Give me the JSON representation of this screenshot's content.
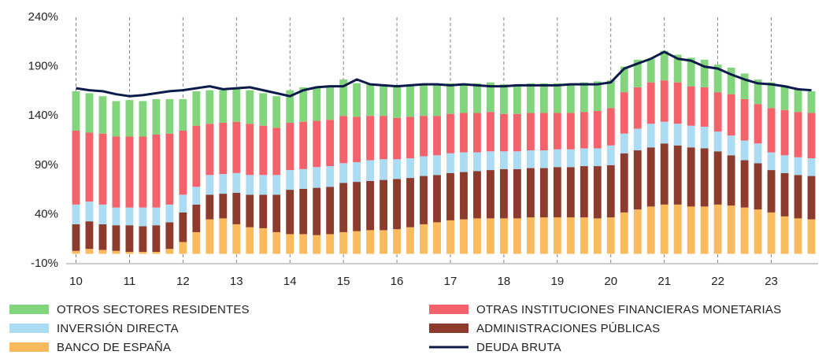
{
  "chart_data": {
    "type": "bar",
    "stacked": true,
    "categories": [
      "10",
      null,
      null,
      null,
      "11",
      null,
      null,
      null,
      "12",
      null,
      null,
      null,
      "13",
      null,
      null,
      null,
      "14",
      null,
      null,
      null,
      "15",
      null,
      null,
      null,
      "16",
      null,
      null,
      null,
      "17",
      null,
      null,
      null,
      "18",
      null,
      null,
      null,
      "19",
      null,
      null,
      null,
      "20",
      null,
      null,
      null,
      "21",
      null,
      null,
      null,
      "22",
      null,
      null,
      null,
      "23",
      null,
      null,
      null
    ],
    "ylim": [
      -10,
      240
    ],
    "yticks": [
      {
        "value": -10,
        "label": "-10%"
      },
      {
        "value": 40,
        "label": "40%"
      },
      {
        "value": 90,
        "label": "90%"
      },
      {
        "value": 140,
        "label": "140%"
      },
      {
        "value": 190,
        "label": "190%"
      },
      {
        "value": 240,
        "label": "240%"
      }
    ],
    "grid": true,
    "series": [
      {
        "name": "BANCO DE ESPAÑA",
        "color": "#f9bb5e",
        "values": [
          3,
          5,
          4,
          3,
          2,
          2,
          2,
          5,
          12,
          22,
          35,
          36,
          30,
          27,
          26,
          22,
          20,
          20,
          19,
          20,
          22,
          23,
          24,
          24,
          25,
          27,
          30,
          32,
          34,
          35,
          36,
          36,
          36,
          36,
          37,
          37,
          37,
          37,
          37,
          36,
          37,
          42,
          45,
          48,
          50,
          50,
          48,
          48,
          50,
          49,
          47,
          45,
          42,
          38,
          36,
          35
        ]
      },
      {
        "name": "ADMINISTRACIONES PÚBLICAS",
        "color": "#8c3b2c",
        "values": [
          27,
          28,
          26,
          26,
          27,
          26,
          27,
          27,
          30,
          28,
          25,
          25,
          32,
          33,
          34,
          38,
          45,
          46,
          48,
          48,
          50,
          50,
          50,
          51,
          51,
          50,
          49,
          48,
          48,
          48,
          48,
          49,
          50,
          50,
          50,
          50,
          51,
          51,
          52,
          53,
          53,
          60,
          60,
          60,
          62,
          60,
          60,
          59,
          54,
          51,
          48,
          47,
          43,
          44,
          44,
          44
        ]
      },
      {
        "name": "INVERSIÓN DIRECTA",
        "color": "#abdcf4",
        "values": [
          20,
          20,
          20,
          18,
          18,
          19,
          18,
          18,
          18,
          18,
          20,
          20,
          20,
          20,
          20,
          20,
          20,
          20,
          21,
          21,
          20,
          20,
          21,
          21,
          20,
          20,
          20,
          20,
          20,
          20,
          19,
          19,
          18,
          18,
          18,
          18,
          18,
          18,
          18,
          18,
          20,
          20,
          22,
          24,
          22,
          22,
          22,
          22,
          20,
          20,
          20,
          20,
          18,
          18,
          18,
          18
        ]
      },
      {
        "name": "OTRAS INSTITUCIONES FINANCIERAS MONETARIAS",
        "color": "#f4636c",
        "values": [
          75,
          70,
          72,
          72,
          72,
          72,
          74,
          72,
          65,
          62,
          52,
          52,
          52,
          52,
          50,
          48,
          48,
          48,
          47,
          47,
          48,
          46,
          45,
          44,
          42,
          42,
          41,
          40,
          40,
          40,
          40,
          40,
          38,
          38,
          38,
          38,
          37,
          37,
          37,
          38,
          38,
          42,
          42,
          42,
          42,
          42,
          40,
          40,
          40,
          42,
          42,
          40,
          45,
          46,
          46,
          46
        ]
      },
      {
        "name": "OTROS SECTORES RESIDENTES",
        "color": "#82d57d",
        "values": [
          40,
          40,
          38,
          36,
          37,
          36,
          36,
          35,
          32,
          35,
          34,
          33,
          34,
          34,
          33,
          32,
          33,
          35,
          34,
          33,
          37,
          34,
          32,
          32,
          33,
          33,
          32,
          32,
          31,
          30,
          30,
          30,
          30,
          30,
          30,
          30,
          30,
          30,
          30,
          30,
          28,
          26,
          28,
          24,
          30,
          28,
          29,
          28,
          28,
          27,
          26,
          25,
          26,
          25,
          23,
          22
        ]
      },
      {
        "name": "DEUDA BRUTA",
        "color": "#0d1b4a",
        "type": "line",
        "values": [
          168,
          166,
          165,
          162,
          160,
          161,
          163,
          165,
          166,
          168,
          170,
          167,
          168,
          169,
          166,
          163,
          160,
          166,
          169,
          170,
          170,
          177,
          172,
          171,
          170,
          171,
          172,
          172,
          171,
          172,
          171,
          170,
          170,
          171,
          171,
          171,
          171,
          172,
          172,
          172,
          174,
          188,
          193,
          198,
          205,
          198,
          196,
          190,
          188,
          182,
          177,
          173,
          172,
          170,
          167,
          166
        ]
      }
    ]
  }
}
